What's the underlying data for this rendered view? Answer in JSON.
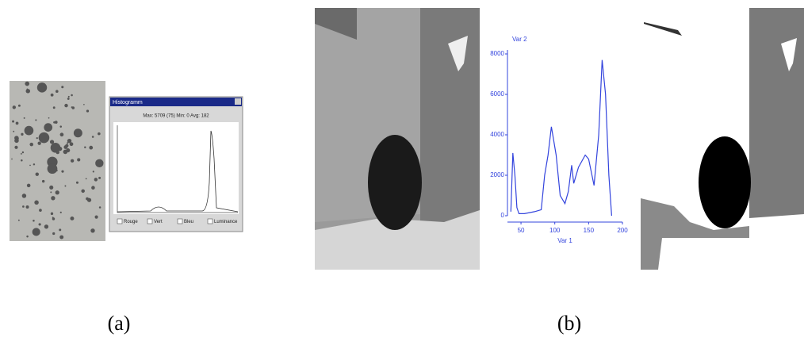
{
  "panel_a": {
    "caption": "(a)",
    "window": {
      "title": "Histogramm",
      "stats": "Max: 5709 (75)  Min: 0  Avg: 182",
      "options": [
        "Rouge",
        "Vert",
        "Bleu",
        "Luminance"
      ]
    }
  },
  "panel_b": {
    "caption": "(b)",
    "histogram": {
      "type": "line",
      "x_label": "Var 1",
      "y_label": "Var 2",
      "color": "#3344dd",
      "x": [
        35,
        38,
        41,
        44,
        47,
        55,
        70,
        80,
        85,
        90,
        95,
        98,
        102,
        108,
        115,
        120,
        125,
        128,
        135,
        145,
        150,
        158,
        165,
        170,
        175,
        180,
        184
      ],
      "values": [
        200,
        3100,
        2000,
        400,
        100,
        100,
        200,
        300,
        2000,
        3000,
        4400,
        3800,
        3000,
        1000,
        600,
        1200,
        2500,
        1600,
        2400,
        3000,
        2800,
        1500,
        4000,
        7700,
        6000,
        2000,
        0
      ],
      "xlim": [
        30,
        200
      ],
      "ylim": [
        0,
        8000
      ],
      "xticks": [
        50,
        100,
        150,
        200
      ],
      "yticks": [
        0,
        2000,
        4000,
        6000,
        8000
      ]
    }
  }
}
